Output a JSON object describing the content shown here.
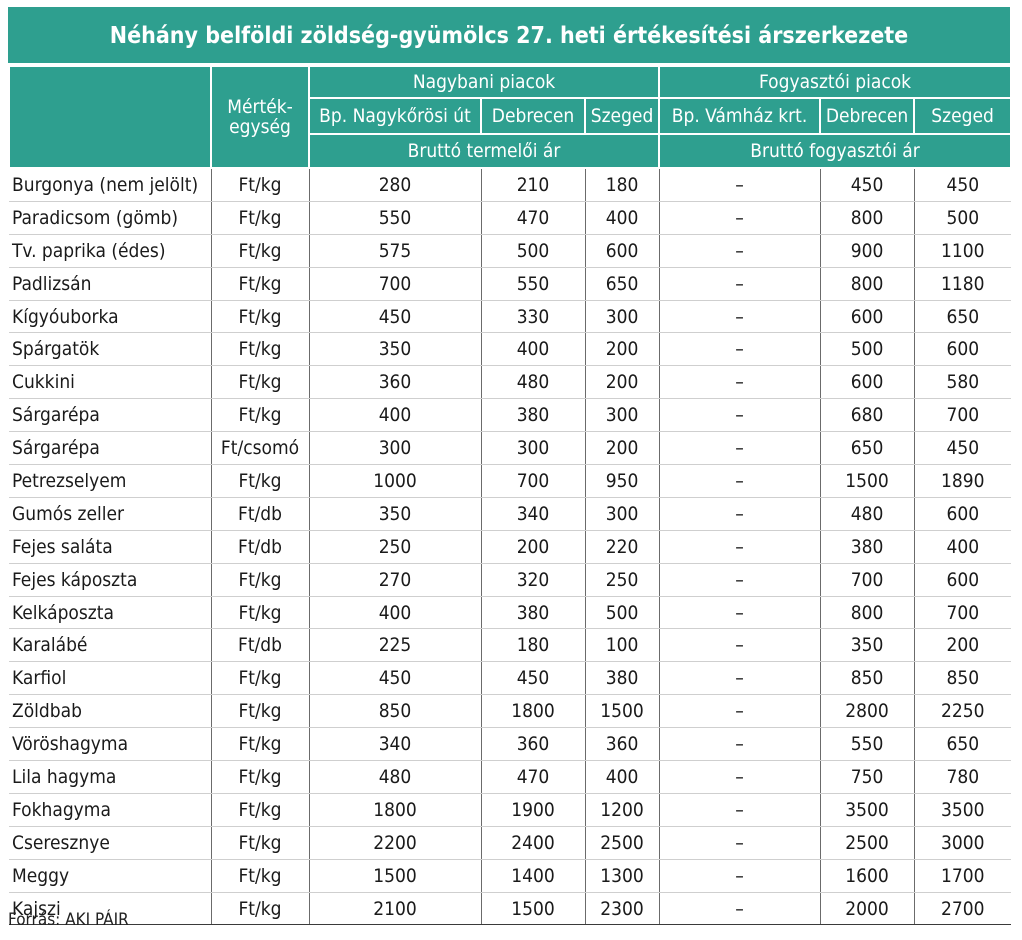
{
  "title": "Néhány belföldi zöldség-gyümölcs 27. heti értékesítési árszerkezete",
  "header": {
    "unit_label": "Mérték-egység",
    "group_wholesale": "Nagybani piacok",
    "group_consumer": "Fogyasztói piacok",
    "markets": [
      "Bp. Nagykőrösi út",
      "Debrecen",
      "Szeged",
      "Bp. Vámház krt.",
      "Debrecen",
      "Szeged"
    ],
    "sub_wholesale": "Bruttó termelői ár",
    "sub_consumer": "Bruttó fogyasztói ár"
  },
  "rows": [
    {
      "name": "Burgonya (nem jelölt)",
      "unit": "Ft/kg",
      "v": [
        "280",
        "210",
        "180",
        "–",
        "450",
        "450"
      ]
    },
    {
      "name": "Paradicsom (gömb)",
      "unit": "Ft/kg",
      "v": [
        "550",
        "470",
        "400",
        "–",
        "800",
        "500"
      ]
    },
    {
      "name": "Tv. paprika (édes)",
      "unit": "Ft/kg",
      "v": [
        "575",
        "500",
        "600",
        "–",
        "900",
        "1100"
      ]
    },
    {
      "name": "Padlizsán",
      "unit": "Ft/kg",
      "v": [
        "700",
        "550",
        "650",
        "–",
        "800",
        "1180"
      ]
    },
    {
      "name": "Kígyóuborka",
      "unit": "Ft/kg",
      "v": [
        "450",
        "330",
        "300",
        "–",
        "600",
        "650"
      ]
    },
    {
      "name": "Spárgatök",
      "unit": "Ft/kg",
      "v": [
        "350",
        "400",
        "200",
        "–",
        "500",
        "600"
      ]
    },
    {
      "name": "Cukkini",
      "unit": "Ft/kg",
      "v": [
        "360",
        "480",
        "200",
        "–",
        "600",
        "580"
      ]
    },
    {
      "name": "Sárgarépa",
      "unit": "Ft/kg",
      "v": [
        "400",
        "380",
        "300",
        "–",
        "680",
        "700"
      ]
    },
    {
      "name": "Sárgarépa",
      "unit": "Ft/csomó",
      "v": [
        "300",
        "300",
        "200",
        "–",
        "650",
        "450"
      ]
    },
    {
      "name": "Petrezselyem",
      "unit": "Ft/kg",
      "v": [
        "1000",
        "700",
        "950",
        "–",
        "1500",
        "1890"
      ]
    },
    {
      "name": "Gumós zeller",
      "unit": "Ft/db",
      "v": [
        "350",
        "340",
        "300",
        "–",
        "480",
        "600"
      ]
    },
    {
      "name": "Fejes saláta",
      "unit": "Ft/db",
      "v": [
        "250",
        "200",
        "220",
        "–",
        "380",
        "400"
      ]
    },
    {
      "name": "Fejes káposzta",
      "unit": "Ft/kg",
      "v": [
        "270",
        "320",
        "250",
        "–",
        "700",
        "600"
      ]
    },
    {
      "name": "Kelkáposzta",
      "unit": "Ft/kg",
      "v": [
        "400",
        "380",
        "500",
        "–",
        "800",
        "700"
      ]
    },
    {
      "name": "Karalábé",
      "unit": "Ft/db",
      "v": [
        "225",
        "180",
        "100",
        "–",
        "350",
        "200"
      ]
    },
    {
      "name": "Karfiol",
      "unit": "Ft/kg",
      "v": [
        "450",
        "450",
        "380",
        "–",
        "850",
        "850"
      ]
    },
    {
      "name": "Zöldbab",
      "unit": "Ft/kg",
      "v": [
        "850",
        "1800",
        "1500",
        "–",
        "2800",
        "2250"
      ]
    },
    {
      "name": "Vöröshagyma",
      "unit": "Ft/kg",
      "v": [
        "340",
        "360",
        "360",
        "–",
        "550",
        "650"
      ]
    },
    {
      "name": "Lila hagyma",
      "unit": "Ft/kg",
      "v": [
        "480",
        "470",
        "400",
        "–",
        "750",
        "780"
      ]
    },
    {
      "name": "Fokhagyma",
      "unit": "Ft/kg",
      "v": [
        "1800",
        "1900",
        "1200",
        "–",
        "3500",
        "3500"
      ]
    },
    {
      "name": "Cseresznye",
      "unit": "Ft/kg",
      "v": [
        "2200",
        "2400",
        "2500",
        "–",
        "2500",
        "3000"
      ]
    },
    {
      "name": "Meggy",
      "unit": "Ft/kg",
      "v": [
        "1500",
        "1400",
        "1300",
        "–",
        "1600",
        "1700"
      ]
    },
    {
      "name": "Kajszi",
      "unit": "Ft/kg",
      "v": [
        "2100",
        "1500",
        "2300",
        "–",
        "2000",
        "2700"
      ]
    }
  ],
  "source": "Forrás: AKI PÁIR",
  "colors": {
    "header_bg": "#2e9f8f",
    "header_text": "#ffffff"
  }
}
